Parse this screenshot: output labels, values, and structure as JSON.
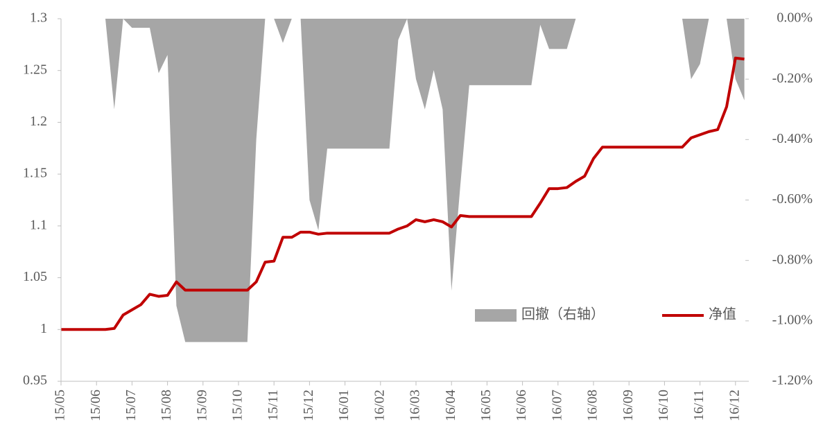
{
  "chart_data": {
    "type": "line-area",
    "categories": [
      "15/05",
      null,
      null,
      null,
      "15/06",
      null,
      null,
      null,
      "15/07",
      null,
      null,
      null,
      "15/08",
      null,
      null,
      null,
      "15/09",
      null,
      null,
      null,
      "15/10",
      null,
      null,
      null,
      "15/11",
      null,
      null,
      null,
      "15/12",
      null,
      null,
      null,
      "16/01",
      null,
      null,
      null,
      "16/02",
      null,
      null,
      null,
      "16/03",
      null,
      null,
      null,
      "16/04",
      null,
      null,
      null,
      "16/05",
      null,
      null,
      null,
      "16/06",
      null,
      null,
      null,
      "16/07",
      null,
      null,
      null,
      "16/08",
      null,
      null,
      null,
      "16/09",
      null,
      null,
      null,
      "16/10",
      null,
      null,
      null,
      "16/11",
      null,
      null,
      null,
      "16/12",
      null
    ],
    "series": [
      {
        "name": "回撤（右轴）",
        "color": "#a6a6a6",
        "kind": "area",
        "axis": "y2",
        "values": [
          0,
          0,
          0,
          0,
          0,
          0,
          -0.3,
          0,
          -0.03,
          -0.03,
          -0.03,
          -0.18,
          -0.12,
          -0.95,
          -1.07,
          -1.07,
          -1.07,
          -1.07,
          -1.07,
          -1.07,
          -1.07,
          -1.07,
          -0.4,
          0,
          0,
          -0.08,
          0,
          0,
          -0.6,
          -0.7,
          -0.43,
          -0.43,
          -0.43,
          -0.43,
          -0.43,
          -0.43,
          -0.43,
          -0.43,
          -0.07,
          0,
          -0.2,
          -0.3,
          -0.17,
          -0.3,
          -0.9,
          -0.55,
          -0.22,
          -0.22,
          -0.22,
          -0.22,
          -0.22,
          -0.22,
          -0.22,
          -0.22,
          -0.02,
          -0.1,
          -0.1,
          -0.1,
          0,
          0,
          0,
          0,
          0,
          0,
          0,
          0,
          0,
          0,
          0,
          0,
          0,
          -0.2,
          -0.15,
          0,
          0,
          0,
          -0.2,
          -0.27
        ]
      },
      {
        "name": "净值",
        "color": "#c00000",
        "kind": "line",
        "values": [
          1,
          1,
          1,
          1,
          1,
          1,
          1.001,
          1.014,
          1.019,
          1.024,
          1.034,
          1.032,
          1.033,
          1.046,
          1.038,
          1.038,
          1.038,
          1.038,
          1.038,
          1.038,
          1.038,
          1.038,
          1.046,
          1.065,
          1.066,
          1.089,
          1.089,
          1.094,
          1.094,
          1.092,
          1.093,
          1.093,
          1.093,
          1.093,
          1.093,
          1.093,
          1.093,
          1.093,
          1.097,
          1.1,
          1.106,
          1.104,
          1.106,
          1.104,
          1.099,
          1.11,
          1.109,
          1.109,
          1.109,
          1.109,
          1.109,
          1.109,
          1.109,
          1.109,
          1.122,
          1.136,
          1.136,
          1.137,
          1.143,
          1.148,
          1.165,
          1.176,
          1.176,
          1.176,
          1.176,
          1.176,
          1.176,
          1.176,
          1.176,
          1.176,
          1.176,
          1.185,
          1.188,
          1.191,
          1.193,
          1.215,
          1.262,
          1.261
        ]
      }
    ],
    "ylim": [
      0.95,
      1.3
    ],
    "yticks": [
      0.95,
      1,
      1.05,
      1.1,
      1.15,
      1.2,
      1.25,
      1.3
    ],
    "y2lim": [
      -1.2,
      0
    ],
    "y2ticks": [
      {
        "value": -1.2,
        "label": "-1.20%"
      },
      {
        "value": -1,
        "label": "-1.00%"
      },
      {
        "value": -0.8,
        "label": "-0.80%"
      },
      {
        "value": -0.6,
        "label": "-0.60%"
      },
      {
        "value": -0.4,
        "label": "-0.40%"
      },
      {
        "value": -0.2,
        "label": "-0.20%"
      },
      {
        "value": 0,
        "label": "0.00%"
      }
    ],
    "legend": "inside-right"
  }
}
